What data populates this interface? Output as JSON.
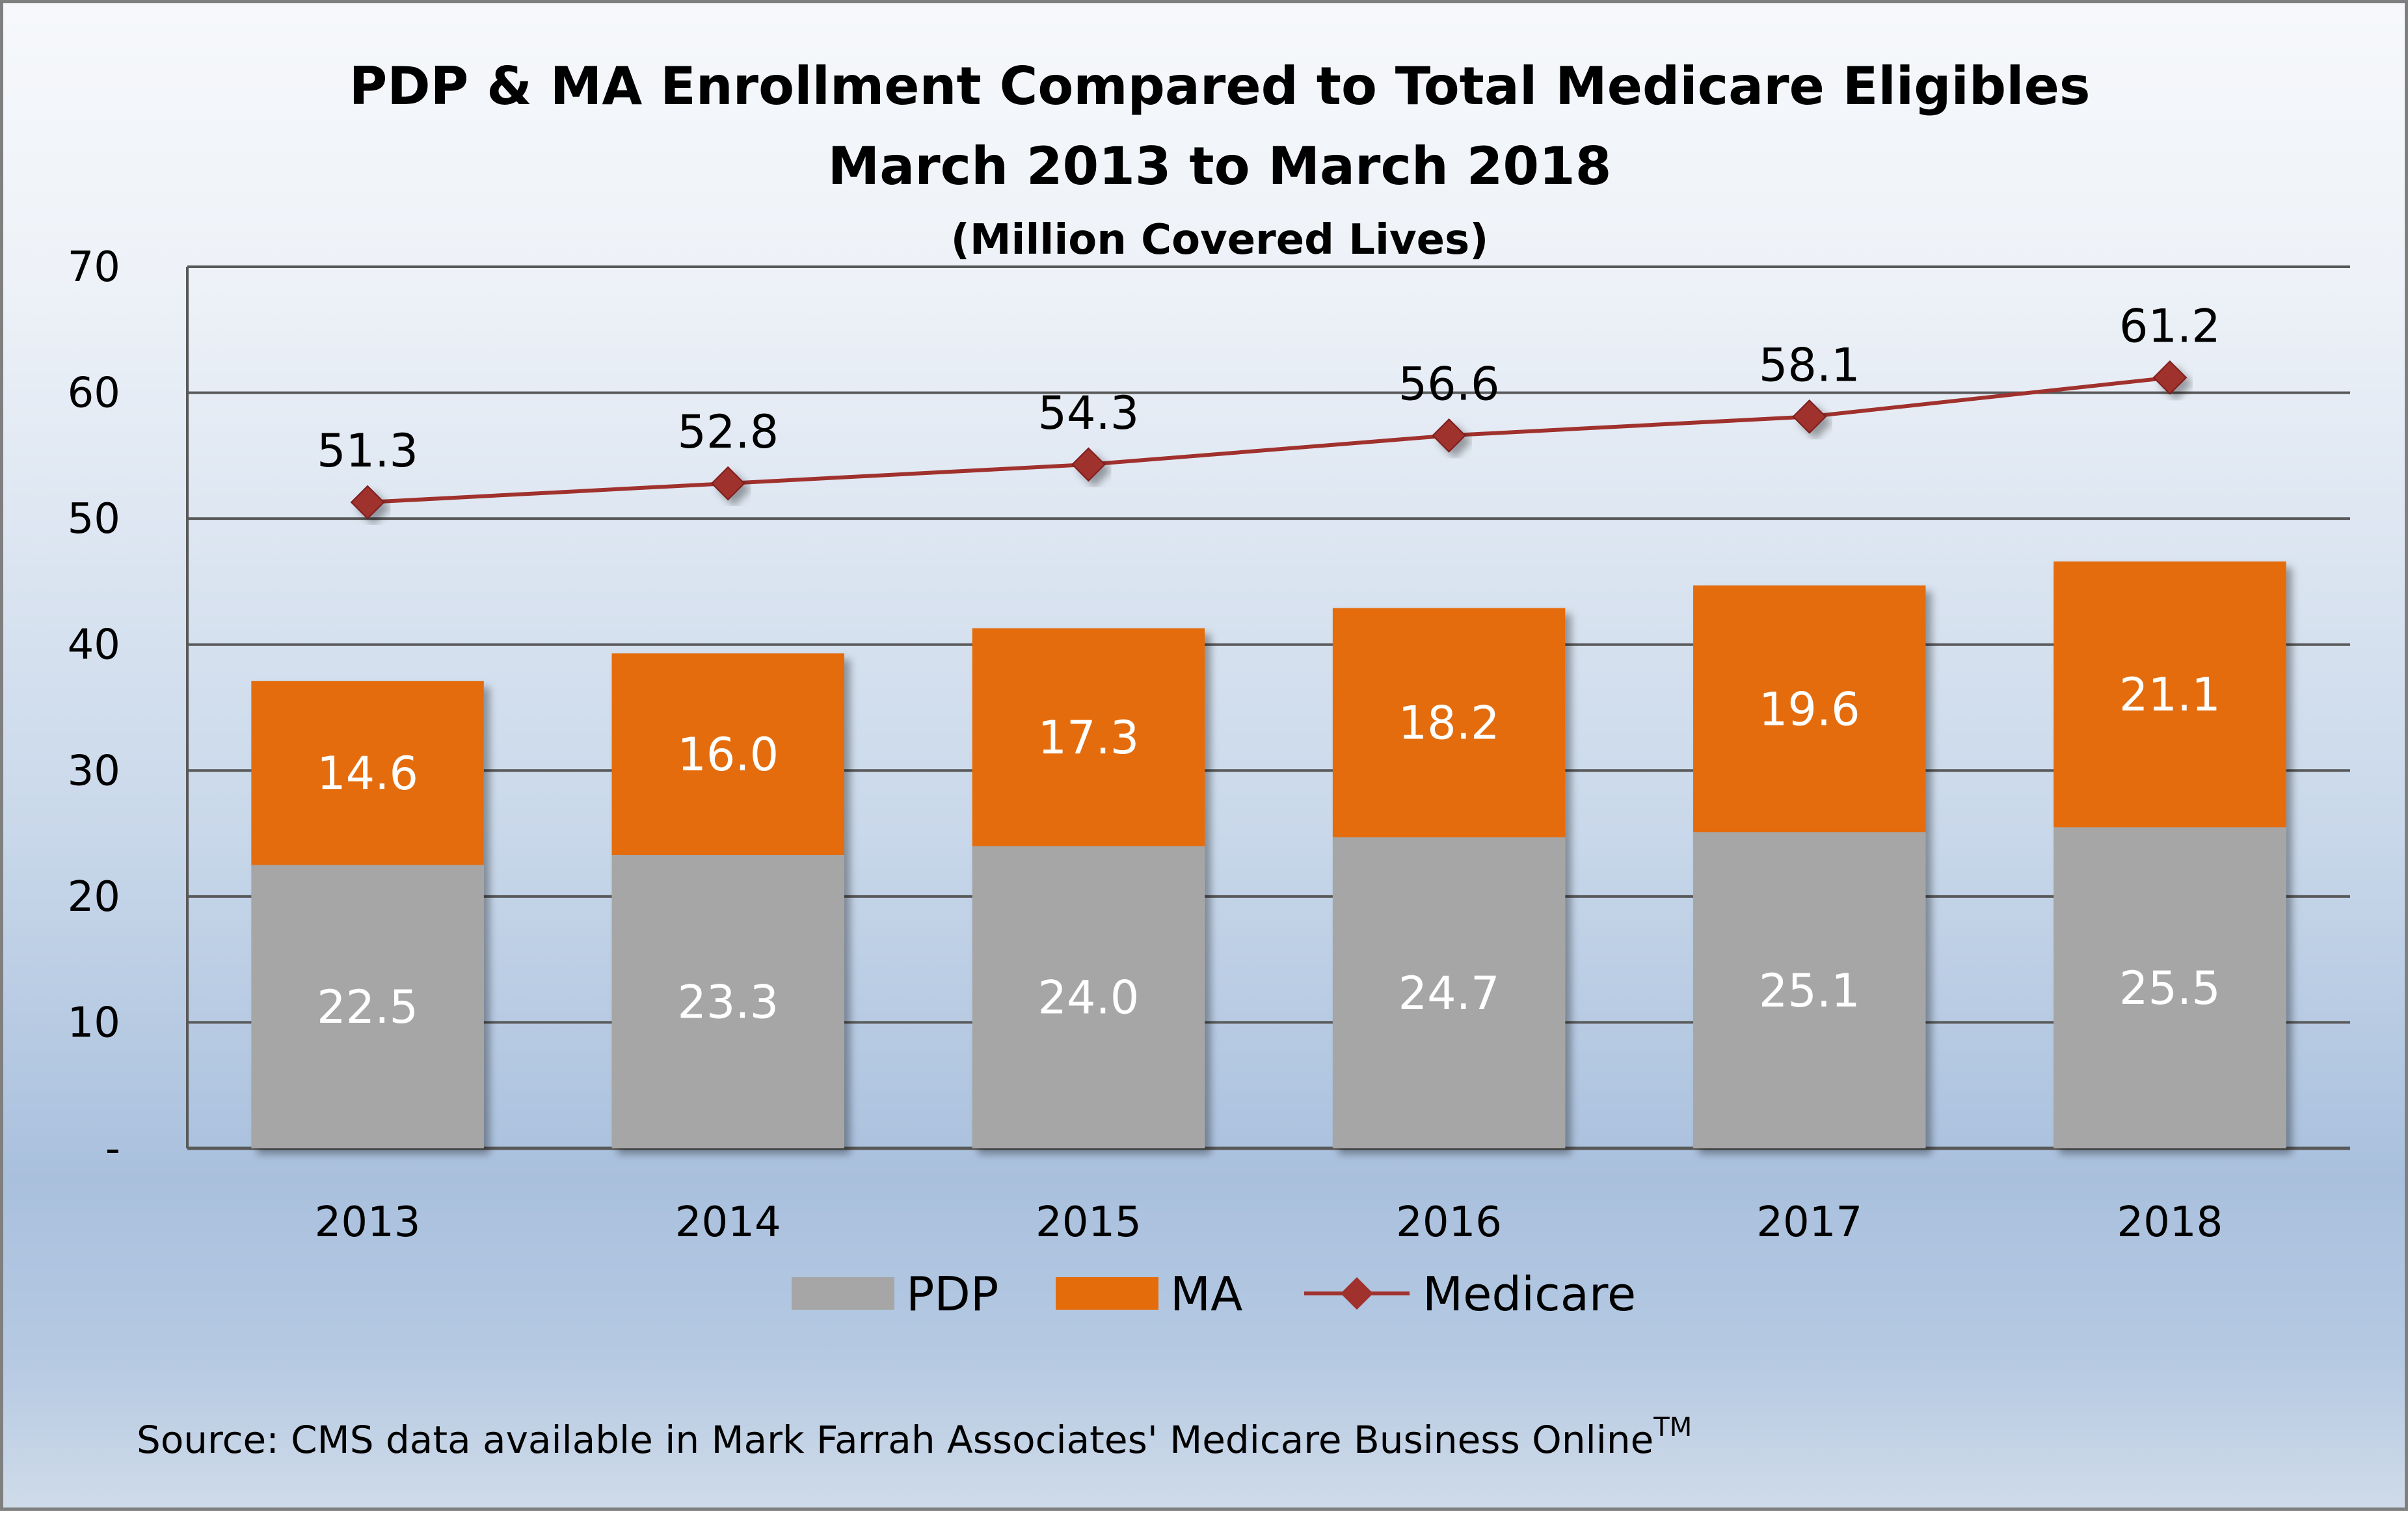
{
  "chart_data": {
    "type": "bar",
    "stacked": true,
    "title": "PDP & MA Enrollment Compared to Total Medicare Eligibles",
    "subtitle": "March 2013 to March 2018",
    "unit_label": "(Million Covered Lives)",
    "categories": [
      "2013",
      "2014",
      "2015",
      "2016",
      "2017",
      "2018"
    ],
    "series": [
      {
        "name": "PDP",
        "type": "bar",
        "color": "#a6a6a6",
        "values": [
          22.5,
          23.3,
          24.0,
          24.7,
          25.1,
          25.5
        ],
        "labels": [
          "22.5",
          "23.3",
          "24.0",
          "24.7",
          "25.1",
          "25.5"
        ]
      },
      {
        "name": "MA",
        "type": "bar",
        "color": "#e46c0a",
        "values": [
          14.6,
          16.0,
          17.3,
          18.2,
          19.6,
          21.1
        ],
        "labels": [
          "14.6",
          "16.0",
          "17.3",
          "18.2",
          "19.6",
          "21.1"
        ]
      },
      {
        "name": "Medicare",
        "type": "line",
        "color": "#a0312d",
        "values": [
          51.3,
          52.8,
          54.3,
          56.6,
          58.1,
          61.2
        ],
        "labels": [
          "51.3",
          "52.8",
          "54.3",
          "56.6",
          "58.1",
          "61.2"
        ]
      }
    ],
    "ylim": [
      0,
      70
    ],
    "yticks": [
      0,
      10,
      20,
      30,
      40,
      50,
      60,
      70
    ],
    "ytick_labels": [
      "-",
      "10",
      "20",
      "30",
      "40",
      "50",
      "60",
      "70"
    ],
    "grid": true,
    "legend_position": "bottom",
    "source": "Source: CMS data available in Mark Farrah Associates' Medicare Business Online",
    "source_superscript": "TM"
  }
}
